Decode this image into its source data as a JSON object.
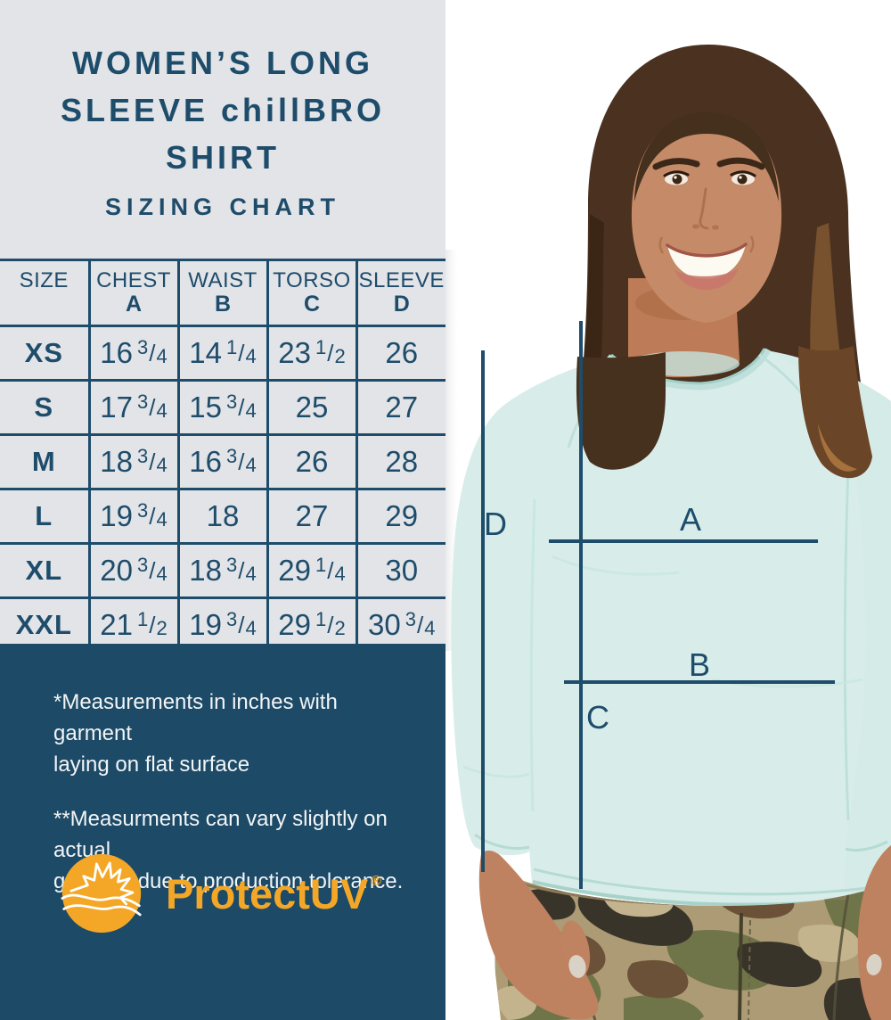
{
  "colors": {
    "navy_text": "#1e4c6b",
    "footer_navy": "#1d4a66",
    "panel_gray": "#e2e4e7",
    "brand_orange": "#f4a727",
    "shirt_mint": "#d8edea",
    "photo_background": "#ffffff"
  },
  "header": {
    "title_lines": [
      "WOMEN’S LONG",
      "SLEEVE chillBRO",
      "SHIRT"
    ],
    "subtitle": "SIZING CHART"
  },
  "table": {
    "columns": [
      {
        "label": "SIZE",
        "letter": ""
      },
      {
        "label": "CHEST",
        "letter": "A"
      },
      {
        "label": "WAIST",
        "letter": "B"
      },
      {
        "label": "TORSO",
        "letter": "C"
      },
      {
        "label": "SLEEVE",
        "letter": "D"
      }
    ],
    "rows": [
      {
        "size": "XS",
        "values": [
          "16 3/4",
          "14 1/4",
          "23 1/2",
          "26"
        ]
      },
      {
        "size": "S",
        "values": [
          "17 3/4",
          "15 3/4",
          "25",
          "27"
        ]
      },
      {
        "size": "M",
        "values": [
          "18 3/4",
          "16 3/4",
          "26",
          "28"
        ]
      },
      {
        "size": "L",
        "values": [
          "19 3/4",
          "18",
          "27",
          "29"
        ]
      },
      {
        "size": "XL",
        "values": [
          "20 3/4",
          "18 3/4",
          "29 1/4",
          "30"
        ]
      },
      {
        "size": "XXL",
        "values": [
          "21 1/2",
          "19 3/4",
          "29 1/2",
          "30 3/4"
        ]
      }
    ]
  },
  "footer": {
    "note1_lines": [
      "*Measurements in inches with garment",
      "laying on flat surface"
    ],
    "note2_lines": [
      "**Measurments can vary slightly on actual",
      "garment due to production tolerance."
    ],
    "brand": "ProtectUV",
    "registered": "®"
  },
  "diagram": {
    "chest_label": "A",
    "waist_label": "B",
    "torso_label": "C",
    "sleeve_label": "D"
  }
}
